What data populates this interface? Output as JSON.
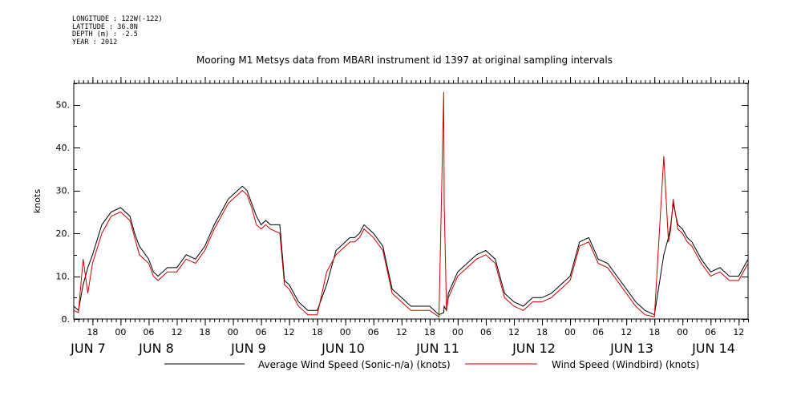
{
  "meta": {
    "longitude": "LONGITUDE : 122W(-122)",
    "latitude": "LATITUDE : 36.8N",
    "depth": "DEPTH (m) : -2.5",
    "year": "YEAR : 2012"
  },
  "chart_data": {
    "type": "line",
    "title": "Mooring M1 Metsys data from MBARI instrument id 1397 at original sampling intervals",
    "ylabel": "knots",
    "ylim": [
      0,
      55
    ],
    "yticks": [
      0,
      10,
      20,
      30,
      40,
      50
    ],
    "ytick_labels": [
      "0.",
      "10.",
      "20.",
      "30.",
      "40.",
      "50."
    ],
    "x_unit": "hours since JUN 6 00:00 (2012)",
    "xlim": [
      14,
      158
    ],
    "hour_ticks": [
      {
        "x": 18,
        "label": "18"
      },
      {
        "x": 24,
        "label": "00"
      },
      {
        "x": 30,
        "label": "06"
      },
      {
        "x": 36,
        "label": "12"
      },
      {
        "x": 42,
        "label": "18"
      },
      {
        "x": 48,
        "label": "00"
      },
      {
        "x": 54,
        "label": "06"
      },
      {
        "x": 60,
        "label": "12"
      },
      {
        "x": 66,
        "label": "18"
      },
      {
        "x": 72,
        "label": "00"
      },
      {
        "x": 78,
        "label": "06"
      },
      {
        "x": 84,
        "label": "12"
      },
      {
        "x": 90,
        "label": "18"
      },
      {
        "x": 96,
        "label": "00"
      },
      {
        "x": 102,
        "label": "06"
      },
      {
        "x": 108,
        "label": "12"
      },
      {
        "x": 114,
        "label": "18"
      },
      {
        "x": 120,
        "label": "00"
      },
      {
        "x": 126,
        "label": "06"
      },
      {
        "x": 132,
        "label": "12"
      },
      {
        "x": 138,
        "label": "18"
      },
      {
        "x": 144,
        "label": "00"
      },
      {
        "x": 150,
        "label": "06"
      },
      {
        "x": 156,
        "label": "12"
      }
    ],
    "date_labels": [
      {
        "x": 24,
        "label": "JUN  7"
      },
      {
        "x": 48,
        "label": "JUN  8"
      },
      {
        "x": 72,
        "label": "JUN  9"
      },
      {
        "x": 96,
        "label": "JUN 10"
      },
      {
        "x": 120,
        "label": "JUN 11"
      },
      {
        "x": 144,
        "label": "JUN 12"
      },
      {
        "x": 168,
        "label": "JUN 13"
      },
      {
        "x": 192,
        "label": "JUN 14"
      }
    ],
    "series": [
      {
        "name": "Average Wind Speed (Sonic-n/a) (knots)",
        "color": "#000000",
        "x": [
          14,
          15,
          16,
          17,
          18,
          20,
          22,
          24,
          26,
          27,
          28,
          30,
          31,
          32,
          34,
          36,
          38,
          40,
          42,
          44,
          46,
          47,
          48,
          49,
          50,
          51,
          52,
          53,
          54,
          55,
          56,
          58,
          59,
          60,
          62,
          64,
          66,
          68,
          70,
          72,
          73,
          74,
          75,
          76,
          78,
          80,
          82,
          84,
          86,
          88,
          90,
          92,
          93,
          93.1,
          93.6,
          94,
          96,
          98,
          100,
          102,
          104,
          106,
          108,
          110,
          112,
          114,
          116,
          118,
          120,
          122,
          124,
          126,
          128,
          130,
          132,
          134,
          136,
          138,
          140,
          141,
          141.5,
          142,
          143,
          144,
          145,
          146,
          147,
          148,
          150,
          152,
          154,
          156,
          158
        ],
        "y": [
          3,
          2,
          8,
          12,
          15,
          22,
          25,
          26,
          24,
          20,
          17,
          14,
          11,
          10,
          12,
          12,
          15,
          14,
          17,
          22,
          26,
          28,
          29,
          30,
          31,
          30,
          27,
          24,
          22,
          23,
          22,
          22,
          9,
          8,
          4,
          2,
          2,
          8,
          16,
          18,
          19,
          19,
          20,
          22,
          20,
          17,
          7,
          5,
          3,
          3,
          3,
          1,
          1.5,
          3,
          2,
          6,
          11,
          13,
          15,
          16,
          14,
          6,
          4,
          3,
          5,
          5,
          6,
          8,
          10,
          18,
          19,
          14,
          13,
          10,
          7,
          4,
          2,
          1,
          15,
          19,
          22,
          27,
          22,
          21,
          19,
          18,
          16,
          14,
          11,
          12,
          10,
          10,
          14
        ]
      },
      {
        "name": "Wind Speed (Windbird) (knots)",
        "color": "#cc0000",
        "x": [
          14,
          15,
          16,
          17,
          18,
          20,
          22,
          24,
          26,
          27,
          28,
          30,
          31,
          32,
          34,
          36,
          38,
          40,
          42,
          44,
          46,
          47,
          48,
          49,
          50,
          51,
          52,
          53,
          54,
          55,
          56,
          58,
          59,
          60,
          62,
          64,
          66,
          68,
          70,
          72,
          73,
          74,
          75,
          76,
          78,
          80,
          82,
          84,
          86,
          88,
          90,
          92,
          93,
          93.1,
          93.6,
          94,
          96,
          98,
          100,
          102,
          104,
          106,
          108,
          110,
          112,
          114,
          116,
          118,
          120,
          122,
          124,
          126,
          128,
          130,
          132,
          134,
          136,
          138,
          140,
          141,
          141.5,
          142,
          143,
          144,
          145,
          146,
          147,
          148,
          150,
          152,
          154,
          156,
          158
        ],
        "y": [
          2,
          1.5,
          14,
          6,
          13,
          20,
          24,
          25,
          23,
          19,
          15,
          13,
          10,
          9,
          11,
          11,
          14,
          13,
          16,
          21,
          25,
          27,
          28,
          29,
          30,
          29,
          26,
          22,
          21,
          22,
          21,
          20,
          8,
          7,
          3,
          1,
          1,
          11,
          15,
          17,
          18,
          18,
          19,
          21,
          19,
          16,
          6,
          4,
          2,
          2,
          2,
          0.5,
          53,
          27,
          2,
          5,
          10,
          12,
          14,
          15,
          13,
          5,
          3,
          2,
          4,
          4,
          5,
          7,
          9,
          17,
          18,
          13,
          12,
          9,
          6,
          3,
          1,
          0.5,
          38,
          18,
          21,
          28,
          21,
          20,
          18,
          17,
          15,
          13,
          10,
          11,
          9,
          9,
          13
        ]
      }
    ],
    "legend_position": "bottom",
    "grid": false
  }
}
